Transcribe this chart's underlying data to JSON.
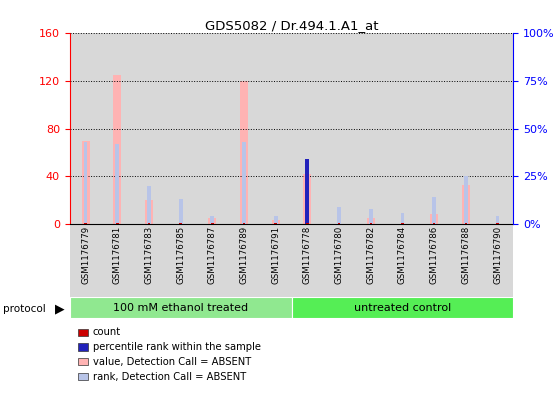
{
  "title": "GDS5082 / Dr.494.1.A1_at",
  "samples": [
    "GSM1176779",
    "GSM1176781",
    "GSM1176783",
    "GSM1176785",
    "GSM1176787",
    "GSM1176789",
    "GSM1176791",
    "GSM1176778",
    "GSM1176780",
    "GSM1176782",
    "GSM1176784",
    "GSM1176786",
    "GSM1176788",
    "GSM1176790"
  ],
  "value_absent": [
    70,
    125,
    20,
    0,
    5,
    120,
    3,
    42,
    0,
    5,
    0,
    8,
    33,
    0
  ],
  "rank_absent_pct": [
    43,
    42,
    20,
    13,
    4,
    43,
    4,
    0,
    9,
    8,
    6,
    14,
    25,
    4
  ],
  "count_val": [
    1,
    1,
    1,
    1,
    1,
    1,
    1,
    1,
    1,
    1,
    1,
    1,
    1,
    1
  ],
  "rank_present_pct": [
    0,
    0,
    0,
    0,
    0,
    0,
    0,
    34,
    0,
    0,
    0,
    0,
    0,
    0
  ],
  "ylim_left": [
    0,
    160
  ],
  "ylim_right": [
    0,
    100
  ],
  "yticks_left": [
    0,
    40,
    80,
    120,
    160
  ],
  "yticks_right": [
    0,
    25,
    50,
    75,
    100
  ],
  "ytick_labels_right": [
    "0%",
    "25%",
    "50%",
    "75%",
    "100%"
  ],
  "group1_label": "100 mM ethanol treated",
  "group2_label": "untreated control",
  "group1_count": 7,
  "group2_count": 7,
  "color_value_absent": "#ffb3b3",
  "color_rank_absent": "#b8c4e8",
  "color_count": "#cc0000",
  "color_rank_present": "#2222bb",
  "color_group1": "#90e890",
  "color_group2": "#55ee55",
  "bar_bg": "#d8d8d8",
  "legend_items": [
    "count",
    "percentile rank within the sample",
    "value, Detection Call = ABSENT",
    "rank, Detection Call = ABSENT"
  ]
}
